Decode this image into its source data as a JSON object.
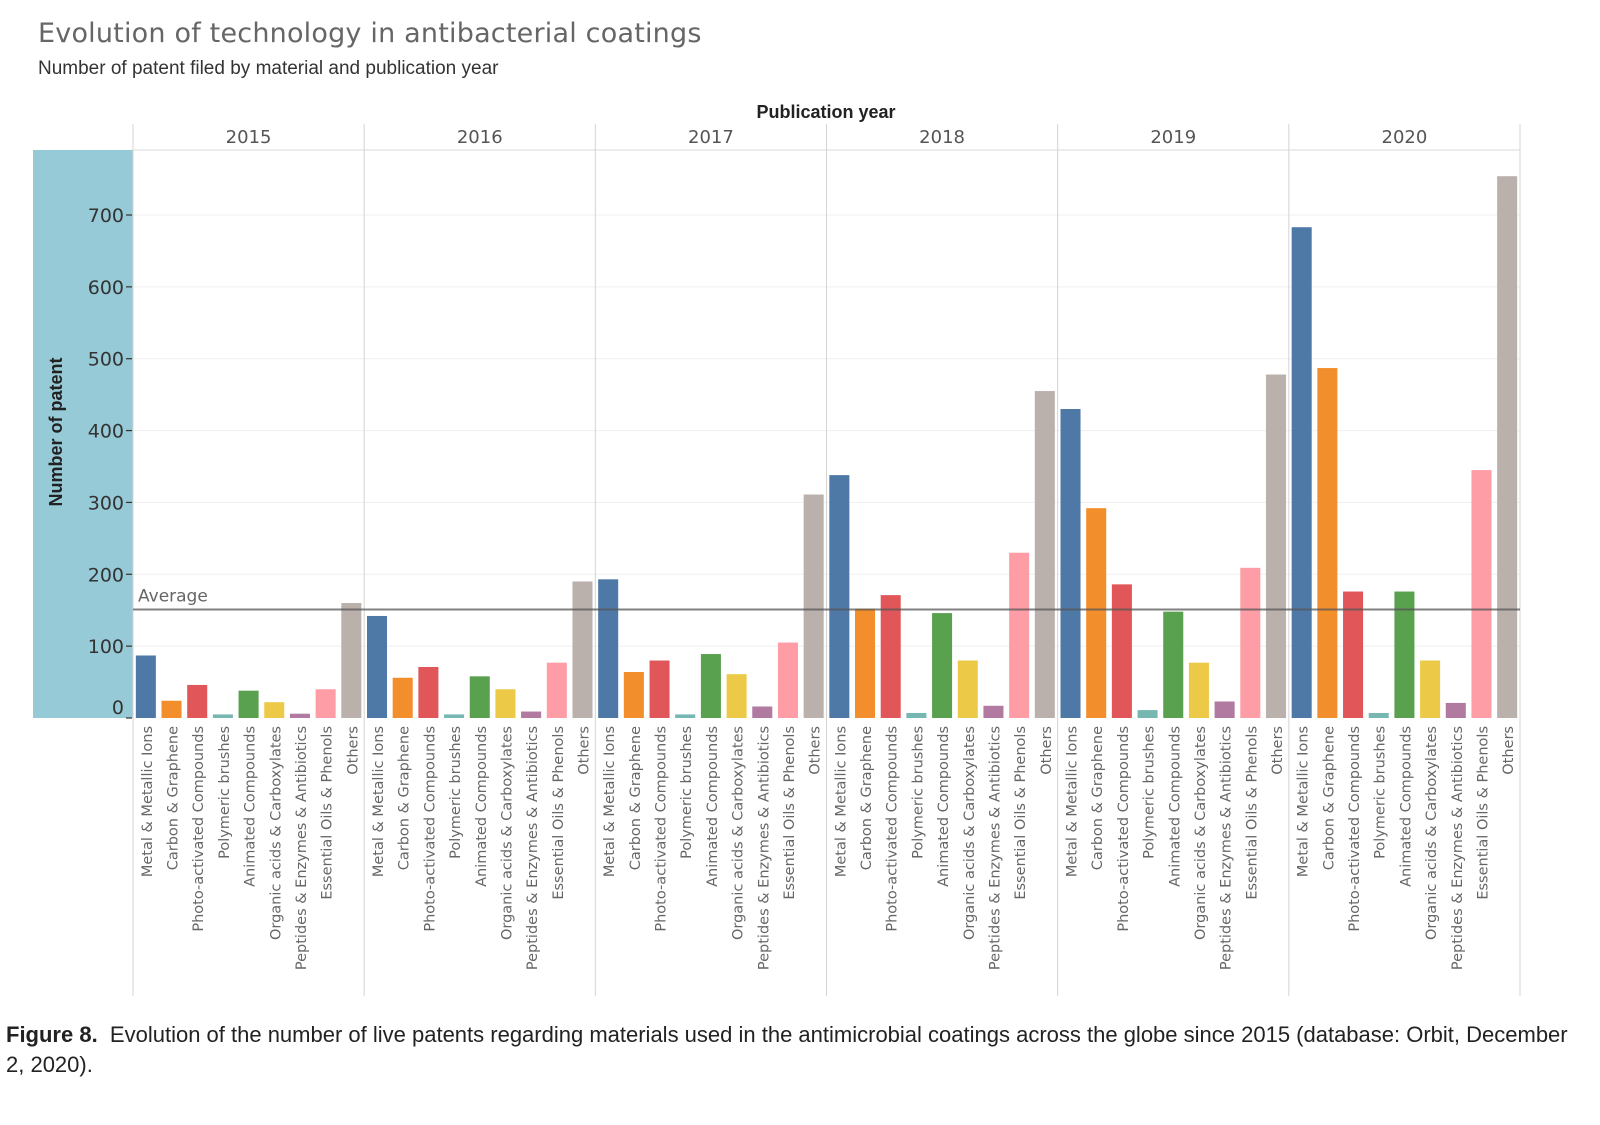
{
  "header": {
    "title": "Evolution of technology in antibacterial coatings",
    "subtitle": "Number of patent filed by material and publication year"
  },
  "caption": {
    "figure_label": "Figure 8.",
    "text": "Evolution of the number of live patents regarding materials used in the antimicrobial coatings across the globe since 2015 (database: Orbit, December 2, 2020)."
  },
  "chart_data": {
    "type": "bar",
    "title": "Evolution of technology in antibacterial coatings",
    "subtitle": "Number of patent filed by material and publication year",
    "column_header": "Publication year",
    "ylabel": "Number of patent",
    "xlabel": "",
    "ylim": [
      0,
      780
    ],
    "yticks": [
      0,
      100,
      200,
      300,
      400,
      500,
      600,
      700
    ],
    "grid": true,
    "reference_line": {
      "label": "Average",
      "value": 151
    },
    "groups": [
      "2015",
      "2016",
      "2017",
      "2018",
      "2019",
      "2020"
    ],
    "categories": [
      "Metal & Metallic Ions",
      "Carbon & Graphene",
      "Photo-activated Compounds",
      "Polymeric brushes",
      "Animated Compounds",
      "Organic acids & Carboxylates",
      "Peptides & Enzymes & Antibiotics",
      "Essential Oils & Phenols",
      "Others"
    ],
    "colors": [
      "#4e79a7",
      "#f28e2b",
      "#e15759",
      "#76b7b2",
      "#59a14f",
      "#edc948",
      "#b07aa1",
      "#ff9da7",
      "#bab0ac"
    ],
    "series": [
      {
        "name": "2015",
        "values": [
          87,
          24,
          46,
          5,
          38,
          22,
          6,
          40,
          160
        ]
      },
      {
        "name": "2016",
        "values": [
          142,
          56,
          71,
          5,
          58,
          40,
          9,
          77,
          190
        ]
      },
      {
        "name": "2017",
        "values": [
          193,
          64,
          80,
          5,
          89,
          61,
          16,
          105,
          311
        ]
      },
      {
        "name": "2018",
        "values": [
          338,
          152,
          171,
          7,
          146,
          80,
          17,
          230,
          455
        ]
      },
      {
        "name": "2019",
        "values": [
          430,
          292,
          186,
          11,
          148,
          77,
          23,
          209,
          478
        ]
      },
      {
        "name": "2020",
        "values": [
          683,
          487,
          176,
          7,
          176,
          80,
          21,
          345,
          754
        ]
      }
    ]
  }
}
